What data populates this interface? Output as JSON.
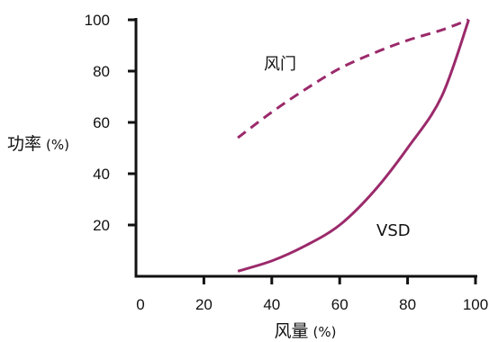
{
  "chart_data": {
    "type": "line",
    "title": "",
    "xlabel": "风量",
    "xlabel_unit": "(%)",
    "ylabel": "功率",
    "ylabel_unit": "(%)",
    "xlim": [
      0,
      100
    ],
    "ylim": [
      0,
      100
    ],
    "x_ticks": [
      "0",
      "20",
      "40",
      "60",
      "80",
      "100"
    ],
    "y_ticks": [
      "20",
      "40",
      "60",
      "80",
      "100"
    ],
    "grid": false,
    "line_color": "#9b2a6b",
    "series": [
      {
        "name": "风门",
        "style": "dashed",
        "points": [
          [
            30,
            54
          ],
          [
            40,
            64
          ],
          [
            50,
            73
          ],
          [
            60,
            81
          ],
          [
            70,
            87
          ],
          [
            80,
            92
          ],
          [
            90,
            96
          ],
          [
            98,
            100
          ]
        ]
      },
      {
        "name": "VSD",
        "style": "solid",
        "points": [
          [
            30,
            2
          ],
          [
            40,
            6
          ],
          [
            50,
            12
          ],
          [
            60,
            20
          ],
          [
            70,
            33
          ],
          [
            80,
            50
          ],
          [
            90,
            70
          ],
          [
            98,
            100
          ]
        ]
      }
    ]
  }
}
